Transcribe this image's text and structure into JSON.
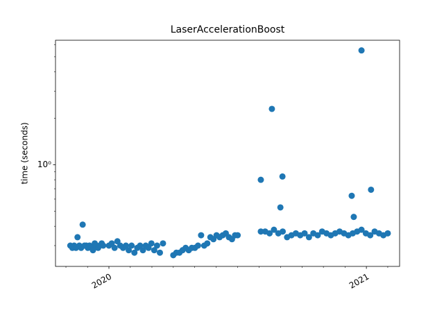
{
  "chart_data": {
    "type": "scatter",
    "title": "LaserAccelerationBoost",
    "ylabel": "time (seconds)",
    "color": "#1f77b4",
    "ylog": true,
    "xlim": [
      2019.7925,
      2021.129
    ],
    "xticks": [
      2020,
      2021
    ],
    "xminorticks": [
      2019.833,
      2019.917,
      2020.083,
      2020.167,
      2020.25,
      2020.333,
      2020.417,
      2020.5,
      2020.583,
      2020.667,
      2020.75,
      2020.833,
      2020.917,
      2021.083
    ],
    "ylim": [
      0.22,
      6.4
    ],
    "yticks": [
      {
        "value": 1,
        "label": "10⁰"
      }
    ],
    "yminorticks": [
      0.3,
      0.4,
      0.5,
      0.6,
      0.7,
      0.8,
      0.9,
      2,
      3,
      4,
      5,
      6
    ],
    "x": [
      2019.85,
      2019.858,
      2019.865,
      2019.872,
      2019.878,
      2019.885,
      2019.892,
      2019.898,
      2019.905,
      2019.912,
      2019.918,
      2019.925,
      2019.932,
      2019.938,
      2019.945,
      2019.952,
      2019.958,
      2019.965,
      2019.972,
      2019.978,
      2020.0,
      2020.011,
      2020.022,
      2020.033,
      2020.044,
      2020.055,
      2020.066,
      2020.077,
      2020.088,
      2020.099,
      2020.11,
      2020.121,
      2020.132,
      2020.143,
      2020.154,
      2020.165,
      2020.176,
      2020.187,
      2020.198,
      2020.21,
      2020.25,
      2020.262,
      2020.274,
      2020.286,
      2020.298,
      2020.31,
      2020.322,
      2020.334,
      2020.346,
      2020.358,
      2020.37,
      2020.382,
      2020.394,
      2020.406,
      2020.418,
      2020.43,
      2020.442,
      2020.454,
      2020.466,
      2020.478,
      2020.49,
      2020.5,
      2020.59,
      2020.607,
      2020.624,
      2020.641,
      2020.658,
      2020.675,
      2020.692,
      2020.709,
      2020.726,
      2020.743,
      2020.76,
      2020.777,
      2020.794,
      2020.811,
      2020.828,
      2020.845,
      2020.862,
      2020.879,
      2020.896,
      2020.913,
      2020.93,
      2020.947,
      2020.964,
      2020.981,
      2020.998,
      2021.015,
      2021.032,
      2021.049,
      2021.066,
      2021.083,
      2020.59,
      2020.633,
      2020.666,
      2020.674,
      2020.943,
      2020.951,
      2020.981,
      2021.018
    ],
    "values": [
      0.3,
      0.29,
      0.3,
      0.29,
      0.34,
      0.3,
      0.29,
      0.41,
      0.3,
      0.3,
      0.29,
      0.3,
      0.29,
      0.28,
      0.31,
      0.3,
      0.29,
      0.3,
      0.31,
      0.3,
      0.3,
      0.31,
      0.29,
      0.32,
      0.3,
      0.29,
      0.3,
      0.28,
      0.3,
      0.27,
      0.29,
      0.3,
      0.28,
      0.3,
      0.29,
      0.31,
      0.28,
      0.3,
      0.27,
      0.31,
      0.26,
      0.27,
      0.27,
      0.28,
      0.29,
      0.28,
      0.29,
      0.29,
      0.3,
      0.35,
      0.3,
      0.31,
      0.34,
      0.33,
      0.35,
      0.34,
      0.35,
      0.36,
      0.34,
      0.33,
      0.35,
      0.35,
      0.37,
      0.37,
      0.36,
      0.38,
      0.36,
      0.37,
      0.34,
      0.35,
      0.36,
      0.35,
      0.36,
      0.34,
      0.36,
      0.35,
      0.37,
      0.36,
      0.35,
      0.36,
      0.37,
      0.36,
      0.35,
      0.36,
      0.37,
      0.38,
      0.36,
      0.35,
      0.37,
      0.36,
      0.35,
      0.36,
      0.8,
      2.3,
      0.53,
      0.84,
      0.63,
      0.46,
      5.5,
      0.69
    ]
  }
}
